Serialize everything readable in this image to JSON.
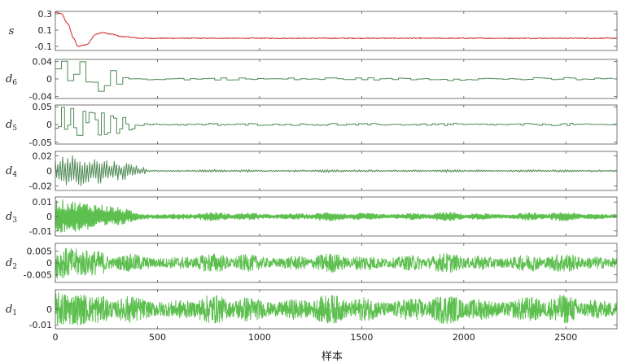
{
  "chart_data": {
    "type": "line",
    "xlabel": "样本",
    "xlim": [
      0,
      2750
    ],
    "x_ticks": [
      0,
      500,
      1000,
      1500,
      2000,
      2500
    ],
    "x_tick_labels": [
      "0",
      "500",
      "1000",
      "1500",
      "2000",
      "2500"
    ],
    "grid": false,
    "colors": {
      "signal": "#d0282b",
      "detail_dark": "#4f8a55",
      "detail_light": "#5cbf4e"
    },
    "panels": [
      {
        "name_main": "s",
        "name_sub": "",
        "ylim": [
          -0.15,
          0.33
        ],
        "y_ticks": [
          0.3,
          0.1,
          -0.1
        ],
        "y_tick_labels": [
          "0.3",
          "0.1",
          "-0.1"
        ],
        "color": "#d0282b",
        "shape": "damped-decay",
        "values_x": [
          0,
          30,
          60,
          90,
          110,
          150,
          200,
          230,
          270,
          330,
          420,
          600,
          1000,
          2750
        ],
        "values_y": [
          0.32,
          0.3,
          0.18,
          0.0,
          -0.1,
          -0.08,
          0.05,
          0.07,
          0.05,
          0.02,
          0.0,
          0.0,
          0.0,
          0.0
        ]
      },
      {
        "name_main": "d",
        "name_sub": "6",
        "ylim": [
          -0.045,
          0.045
        ],
        "y_ticks": [
          0.04,
          0,
          -0.04
        ],
        "y_tick_labels": [
          "0.04",
          "0",
          "-0.04"
        ],
        "color": "#4f8a55",
        "shape": "step",
        "amp": 0.004,
        "burst_amp": 0.05,
        "burst_end": 320,
        "step": 30,
        "stroke": 1
      },
      {
        "name_main": "d",
        "name_sub": "5",
        "ylim": [
          -0.055,
          0.055
        ],
        "y_ticks": [
          0.05,
          0,
          -0.05
        ],
        "y_tick_labels": [
          "0.05",
          "0",
          "-0.05"
        ],
        "color": "#4f8a55",
        "shape": "step",
        "amp": 0.004,
        "burst_amp": 0.05,
        "burst_end": 400,
        "step": 15,
        "stroke": 1
      },
      {
        "name_main": "d",
        "name_sub": "4",
        "ylim": [
          -0.026,
          0.026
        ],
        "y_ticks": [
          0.02,
          0,
          -0.02
        ],
        "y_tick_labels": [
          "0.02",
          "0",
          "-0.02"
        ],
        "color": "#4f8a55",
        "shape": "oscillation",
        "amp": 0.002,
        "burst_amp": 0.024,
        "burst_end": 450,
        "step": 6,
        "stroke": 1
      },
      {
        "name_main": "d",
        "name_sub": "3",
        "ylim": [
          -0.0135,
          0.0135
        ],
        "y_ticks": [
          0.01,
          0,
          -0.01
        ],
        "y_tick_labels": [
          "0.01",
          "0",
          "-0.01"
        ],
        "color": "#5cbf4e",
        "shape": "oscillation",
        "amp": 0.003,
        "burst_amp": 0.012,
        "burst_end": 380,
        "step": 3,
        "stroke": 1.2
      },
      {
        "name_main": "d",
        "name_sub": "2",
        "ylim": [
          -0.0082,
          0.0082
        ],
        "y_ticks": [
          0.005,
          0,
          -0.005
        ],
        "y_tick_labels": [
          "0.005",
          "0",
          "-0.005"
        ],
        "color": "#5cbf4e",
        "shape": "noise",
        "amp": 0.0035,
        "burst_amp": 0.0055,
        "burst_end": 250,
        "step": 1.6,
        "stroke": 1
      },
      {
        "name_main": "d",
        "name_sub": "1",
        "ylim": [
          -0.0125,
          0.0125
        ],
        "y_ticks": [
          0,
          -0.01
        ],
        "y_tick_labels": [
          "0",
          "-0.01"
        ],
        "color": "#5cbf4e",
        "shape": "noise",
        "amp": 0.008,
        "burst_amp": 0.009,
        "burst_end": 150,
        "step": 1.4,
        "stroke": 1
      }
    ]
  }
}
